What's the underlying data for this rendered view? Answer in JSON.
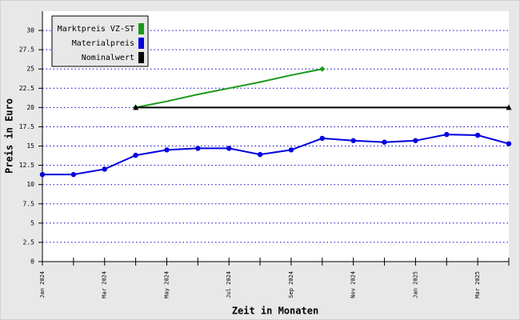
{
  "chart_data": {
    "type": "line",
    "xlabel": "Zeit in Monaten",
    "ylabel": "Preis in Euro",
    "categories": [
      "Jan 2024",
      null,
      "Mar 2024",
      null,
      "May 2024",
      null,
      "Jul 2024",
      null,
      "Sep 2024",
      null,
      "Nov 2024",
      null,
      "Jan 2025",
      null,
      "Mar 2025",
      null
    ],
    "series": [
      {
        "name": "Marktpreis VZ-ST",
        "color": "#1a9a1a",
        "markers": "ends",
        "marker": "diamond",
        "values": [
          null,
          null,
          null,
          20,
          20.8,
          21.7,
          22.5,
          23.3,
          24.2,
          25,
          null,
          null,
          null,
          null,
          null,
          null
        ]
      },
      {
        "name": "Materialpreis",
        "color": "#0000e0",
        "markers": "all",
        "marker": "circle",
        "values": [
          11.3,
          11.3,
          12,
          13.8,
          14.5,
          14.7,
          14.7,
          13.9,
          14.5,
          16,
          15.7,
          15.5,
          15.7,
          16.5,
          16.4,
          15.3
        ]
      },
      {
        "name": "Nominalwert",
        "color": "#000000",
        "markers": "ends",
        "marker": "triangle",
        "values": [
          null,
          null,
          null,
          20,
          20,
          20,
          20,
          20,
          20,
          20,
          20,
          20,
          20,
          20,
          20,
          20
        ]
      }
    ],
    "ylim": [
      0,
      32.5
    ],
    "yticks": [
      0,
      2.5,
      5,
      7.5,
      10,
      12.5,
      15,
      17.5,
      20,
      22.5,
      25,
      27.5,
      30
    ],
    "grid": true,
    "legend": "top-left"
  }
}
